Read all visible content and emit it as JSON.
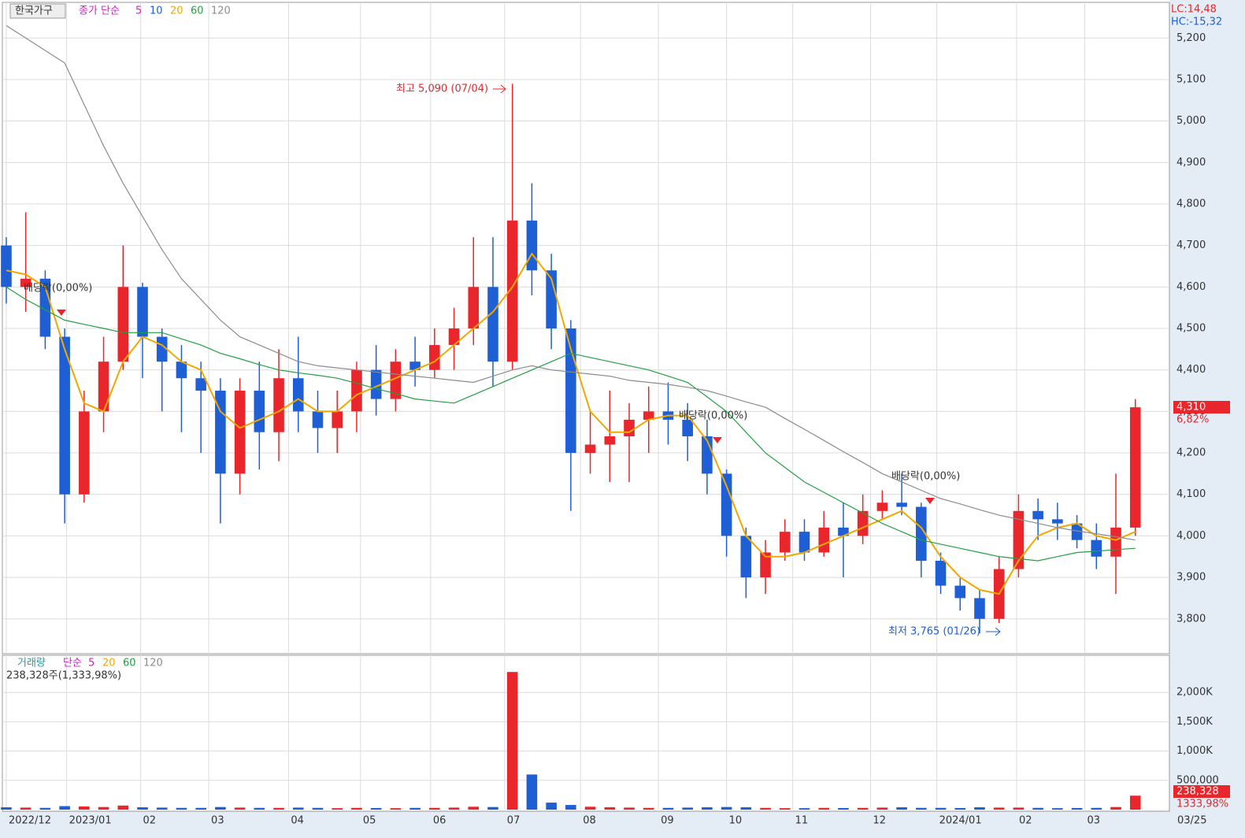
{
  "chart_data": {
    "type": "candlestick",
    "ticker": "한국가구",
    "legend_price": "종가 단순",
    "ma_periods": [
      "5",
      "10",
      "20",
      "60",
      "120"
    ],
    "legend_volume": "거래량",
    "legend_volume_ma": "단순",
    "volume_ma_periods": [
      "5",
      "20",
      "60",
      "120"
    ],
    "volume_header": "238,328주(1,333,98%)",
    "lc": "LC:14,48",
    "hc": "HC:-15,32",
    "last_price_label": "4,310",
    "last_change_label": "6,82%",
    "last_volume_label": "238,328",
    "last_volume_change": "1333,98%",
    "high_note": "최고 5,090 (07/04)",
    "low_note": "최저 3,765 (01/26)",
    "dividend_note": "배당락(0,00%)",
    "corner_date": "03/25",
    "x": [
      0,
      1,
      2,
      3,
      4,
      5,
      6,
      7,
      8,
      9,
      10,
      11,
      12,
      13,
      14,
      15,
      16,
      17,
      18,
      19,
      20,
      21,
      22,
      23,
      24,
      25,
      26,
      27,
      28,
      29,
      30,
      31,
      32,
      33,
      34,
      35,
      36,
      37,
      38,
      39,
      40,
      41,
      42,
      43,
      44,
      45,
      46,
      47,
      48,
      49,
      50,
      51,
      52,
      53,
      54,
      55,
      56,
      57,
      58
    ],
    "open": [
      4700,
      4600,
      4620,
      4480,
      4100,
      4300,
      4420,
      4600,
      4480,
      4420,
      4380,
      4350,
      4150,
      4350,
      4250,
      4380,
      4300,
      4260,
      4300,
      4400,
      4330,
      4420,
      4400,
      4460,
      4500,
      4600,
      4420,
      4760,
      4640,
      4500,
      4200,
      4220,
      4240,
      4280,
      4300,
      4280,
      4240,
      4150,
      4000,
      3900,
      3960,
      4010,
      3960,
      4020,
      4000,
      4060,
      4080,
      4070,
      3940,
      3880,
      3850,
      3800,
      3920,
      4060,
      4040,
      4030,
      3990,
      3950,
      4020
    ],
    "high": [
      4720,
      4780,
      4640,
      4500,
      4350,
      4480,
      4700,
      4610,
      4500,
      4460,
      4420,
      4380,
      4380,
      4420,
      4450,
      4480,
      4350,
      4350,
      4420,
      4460,
      4450,
      4480,
      4500,
      4550,
      4720,
      4720,
      5090,
      4850,
      4680,
      4520,
      4300,
      4350,
      4320,
      4360,
      4370,
      4320,
      4280,
      4160,
      4020,
      3990,
      4040,
      4040,
      4060,
      4080,
      4100,
      4110,
      4150,
      4080,
      3960,
      3900,
      3870,
      3950,
      4100,
      4090,
      4080,
      4050,
      4030,
      4150,
      4330
    ],
    "low": [
      4560,
      4540,
      4450,
      4030,
      4080,
      4250,
      4400,
      4380,
      4300,
      4250,
      4200,
      4030,
      4100,
      4160,
      4180,
      4250,
      4200,
      4200,
      4250,
      4290,
      4300,
      4360,
      4380,
      4400,
      4460,
      4360,
      4400,
      4580,
      4450,
      4060,
      4150,
      4130,
      4130,
      4200,
      4220,
      4180,
      4100,
      3950,
      3850,
      3860,
      3940,
      3940,
      3950,
      3900,
      3980,
      4040,
      4050,
      3900,
      3860,
      3820,
      3765,
      3790,
      3900,
      3990,
      3990,
      3970,
      3920,
      3860,
      4000
    ],
    "close": [
      4600,
      4620,
      4480,
      4100,
      4300,
      4420,
      4600,
      4480,
      4420,
      4380,
      4350,
      4150,
      4350,
      4250,
      4380,
      4300,
      4260,
      4300,
      4400,
      4330,
      4420,
      4400,
      4460,
      4500,
      4600,
      4420,
      4760,
      4640,
      4500,
      4200,
      4220,
      4240,
      4280,
      4300,
      4280,
      4240,
      4150,
      4000,
      3900,
      3960,
      4010,
      3960,
      4020,
      4000,
      4060,
      4080,
      4070,
      3940,
      3880,
      3850,
      3800,
      3920,
      4060,
      4040,
      4030,
      3990,
      3950,
      4020,
      4310
    ],
    "ma": [
      {
        "name": "20",
        "color": "#f0a800",
        "values": [
          4640,
          4630,
          4600,
          4450,
          4320,
          4300,
          4420,
          4480,
          4460,
          4420,
          4400,
          4300,
          4260,
          4280,
          4300,
          4330,
          4300,
          4300,
          4340,
          4360,
          4380,
          4400,
          4420,
          4460,
          4500,
          4540,
          4600,
          4680,
          4620,
          4450,
          4300,
          4250,
          4250,
          4280,
          4290,
          4290,
          4230,
          4120,
          4000,
          3950,
          3950,
          3960,
          3980,
          4000,
          4020,
          4040,
          4060,
          4020,
          3950,
          3900,
          3870,
          3860,
          3940,
          4000,
          4020,
          4030,
          4000,
          3990,
          4010
        ]
      },
      {
        "name": "60",
        "color": "#22a040",
        "values": [
          4600,
          4570,
          4545,
          4520,
          4510,
          4500,
          4490,
          4490,
          4490,
          4475,
          4460,
          4440,
          4427,
          4413,
          4400,
          4393,
          4387,
          4380,
          4368,
          4355,
          4343,
          4330,
          4325,
          4320,
          4340,
          4360,
          4380,
          4400,
          4420,
          4440,
          4430,
          4420,
          4410,
          4400,
          4385,
          4370,
          4335,
          4300,
          4250,
          4200,
          4165,
          4130,
          4105,
          4080,
          4055,
          4030,
          4010,
          3990,
          3980,
          3970,
          3960,
          3950,
          3945,
          3940,
          3950,
          3960,
          3963,
          3967,
          3970
        ]
      },
      {
        "name": "120",
        "color": "#8c8c8c",
        "values": [
          5230,
          5200,
          5170,
          5140,
          5040,
          4940,
          4850,
          4770,
          4690,
          4620,
          4570,
          4520,
          4480,
          4460,
          4440,
          4420,
          4410,
          4405,
          4400,
          4395,
          4390,
          4385,
          4380,
          4375,
          4370,
          4385,
          4400,
          4410,
          4400,
          4395,
          4390,
          4385,
          4375,
          4370,
          4365,
          4358,
          4350,
          4337,
          4323,
          4310,
          4283,
          4257,
          4230,
          4203,
          4177,
          4150,
          4130,
          4110,
          4090,
          4077,
          4063,
          4050,
          4040,
          4030,
          4020,
          4012,
          4005,
          3998,
          3990
        ]
      }
    ],
    "volume": [
      40,
      35,
      30,
      60,
      55,
      45,
      70,
      40,
      35,
      30,
      30,
      45,
      35,
      30,
      30,
      35,
      30,
      25,
      30,
      28,
      25,
      30,
      30,
      35,
      50,
      45,
      2350,
      600,
      120,
      80,
      50,
      40,
      35,
      30,
      30,
      35,
      40,
      45,
      40,
      30,
      25,
      25,
      30,
      28,
      30,
      35,
      40,
      30,
      30,
      28,
      40,
      35,
      35,
      30,
      25,
      28,
      30,
      45,
      238.328
    ],
    "up_color": "#e8262b",
    "down_color": "#1f5fd6",
    "xlim": [
      -0.12,
      59.75
    ],
    "xticks": [
      {
        "value": 0,
        "label": "2022/12"
      },
      {
        "value": 3.1,
        "label": "2023/01"
      },
      {
        "value": 6.9,
        "label": "02"
      },
      {
        "value": 10.4,
        "label": "03"
      },
      {
        "value": 14.5,
        "label": "04"
      },
      {
        "value": 18.2,
        "label": "05"
      },
      {
        "value": 21.8,
        "label": "06"
      },
      {
        "value": 25.6,
        "label": "07"
      },
      {
        "value": 29.5,
        "label": "08"
      },
      {
        "value": 33.5,
        "label": "09"
      },
      {
        "value": 37.0,
        "label": "10"
      },
      {
        "value": 40.4,
        "label": "11"
      },
      {
        "value": 44.4,
        "label": "12"
      },
      {
        "value": 47.8,
        "label": "2024/01"
      },
      {
        "value": 51.9,
        "label": "02"
      },
      {
        "value": 55.4,
        "label": "03"
      }
    ],
    "ylim": [
      3716,
      5286
    ],
    "yticks": [
      {
        "value": 3800,
        "label": "3,800"
      },
      {
        "value": 3900,
        "label": "3,900"
      },
      {
        "value": 4000,
        "label": "4,000"
      },
      {
        "value": 4100,
        "label": "4,100"
      },
      {
        "value": 4200,
        "label": "4,200"
      },
      {
        "value": 4300,
        "label": "4,300"
      },
      {
        "value": 4400,
        "label": "4,400"
      },
      {
        "value": 4500,
        "label": "4,500"
      },
      {
        "value": 4600,
        "label": "4,600"
      },
      {
        "value": 4700,
        "label": "4,700"
      },
      {
        "value": 4800,
        "label": "4,800"
      },
      {
        "value": 4900,
        "label": "4,900"
      },
      {
        "value": 5000,
        "label": "5,000"
      },
      {
        "value": 5100,
        "label": "5,100"
      },
      {
        "value": 5200,
        "label": "5,200"
      }
    ],
    "vlim": [
      0,
      2635
    ],
    "vticks": [
      {
        "value": 500,
        "label": "500,000"
      },
      {
        "value": 1000,
        "label": "1,000K"
      },
      {
        "value": 1500,
        "label": "1,500K"
      },
      {
        "value": 2000,
        "label": "2,000K"
      }
    ],
    "grid": true
  }
}
